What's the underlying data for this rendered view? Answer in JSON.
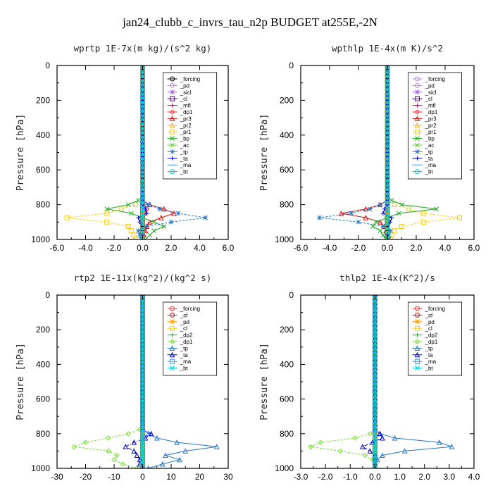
{
  "figure_title": "jan24_clubb_c_invrs_tau_n2p  BUDGET at255E,-2N",
  "chart_data": [
    {
      "type": "line",
      "title": "wprtp  1E-7x(m kg)/(s^2 kg)",
      "ylabel": "Pressure [hPa]",
      "xlim": [
        -6,
        6
      ],
      "ylim": [
        1000,
        0
      ],
      "xticks": [
        "-6.0",
        "-4.0",
        "-2.0",
        "0.0",
        "2.0",
        "4.0",
        "6.0"
      ],
      "xtick_values": [
        -6,
        -4,
        -2,
        0,
        2,
        4,
        6
      ],
      "yticks": [
        "0",
        "200",
        "400",
        "600",
        "800",
        "1000"
      ],
      "ytick_values": [
        0,
        200,
        400,
        600,
        800,
        1000
      ],
      "pressure": [
        775,
        800,
        825,
        850,
        875,
        900,
        925,
        950,
        975,
        1000
      ],
      "legend": [
        "_forcing",
        "_pd",
        "_sicl",
        "_cl",
        "_mfl",
        "_dp1",
        "_pr3",
        "_pr2",
        "_pr1",
        "_bp",
        "_ac",
        "_tp",
        "_ta",
        "_ma",
        "_bt"
      ],
      "series": [
        {
          "name": "_forcing",
          "color": "#000000",
          "values": [
            0,
            0,
            0,
            0,
            0,
            0,
            0,
            0,
            0,
            0
          ]
        },
        {
          "name": "_pd",
          "color": "#bb88dd",
          "values": [
            0,
            0,
            0,
            0,
            0,
            0,
            0,
            0,
            0,
            0
          ]
        },
        {
          "name": "_sicl",
          "color": "#9966cc",
          "values": [
            0,
            0,
            0,
            0,
            0,
            0,
            0,
            0,
            0,
            0
          ]
        },
        {
          "name": "_cl",
          "color": "#550088",
          "values": [
            0,
            0,
            0,
            0,
            0,
            0,
            0,
            0,
            0,
            0
          ]
        },
        {
          "name": "_mfl",
          "color": "#cc0055",
          "values": [
            0,
            0,
            0,
            0,
            0,
            0,
            0,
            0,
            0,
            0
          ]
        },
        {
          "name": "_dp1",
          "color": "#ff3333",
          "values": [
            0,
            0.1,
            0.3,
            0.2,
            0,
            0,
            0,
            0,
            0,
            0
          ]
        },
        {
          "name": "_pr3",
          "color": "#dd1111",
          "values": [
            0,
            0.5,
            1.5,
            2.2,
            1.3,
            0.5,
            0.3,
            0.2,
            0.1,
            0
          ]
        },
        {
          "name": "_pr2",
          "color": "#ffaa33",
          "values": [
            0,
            0,
            0,
            0,
            0,
            0,
            0,
            0,
            0,
            0
          ]
        },
        {
          "name": "_pr1",
          "color": "#ffcc00",
          "values": [
            0,
            -0.5,
            -1.5,
            -2.5,
            -5.3,
            -2.5,
            -1.0,
            -0.8,
            -0.6,
            -0.5
          ]
        },
        {
          "name": "_bp",
          "color": "#22aa22",
          "values": [
            -0.3,
            -1.0,
            -2.5,
            -0.8,
            0,
            0.8,
            1.5,
            0.8,
            0.5,
            0.2
          ]
        },
        {
          "name": "_ac",
          "color": "#66cc33",
          "values": [
            0,
            0,
            0,
            0,
            0,
            0,
            0,
            0,
            0,
            0
          ]
        },
        {
          "name": "_tp",
          "color": "#2277cc",
          "values": [
            0,
            0.4,
            1.2,
            2.5,
            4.4,
            2.0,
            0.3,
            -0.3,
            -0.2,
            -0.1
          ]
        },
        {
          "name": "_ta",
          "color": "#0000cc",
          "values": [
            0,
            0,
            0.2,
            0.3,
            -0.3,
            -0.2,
            0,
            0,
            0,
            0
          ]
        },
        {
          "name": "_ma",
          "color": "#3399ff",
          "values": [
            0,
            0,
            0,
            0,
            0,
            0,
            0,
            0,
            0,
            0
          ]
        },
        {
          "name": "_bt",
          "color": "#00cccc",
          "values": [
            0,
            0,
            0,
            0,
            0,
            0,
            0,
            0,
            0,
            0
          ]
        }
      ]
    },
    {
      "type": "line",
      "title": "wpthlp  1E-4x(m K)/s^2",
      "ylabel": "Pressure [hPa]",
      "xlim": [
        -6,
        6
      ],
      "ylim": [
        1000,
        0
      ],
      "xticks": [
        "-6.0",
        "-4.0",
        "-2.0",
        "0.0",
        "2.0",
        "4.0",
        "6.0"
      ],
      "xtick_values": [
        -6,
        -4,
        -2,
        0,
        2,
        4,
        6
      ],
      "yticks": [
        "0",
        "200",
        "400",
        "600",
        "800",
        "1000"
      ],
      "ytick_values": [
        0,
        200,
        400,
        600,
        800,
        1000
      ],
      "pressure": [
        775,
        800,
        825,
        850,
        875,
        900,
        925,
        950,
        975,
        1000
      ],
      "legend": [
        "_forcing",
        "_pd",
        "_sicl",
        "_cl",
        "_mfl",
        "_dp1",
        "_pr3",
        "_pr2",
        "_pr1",
        "_bp",
        "_ac",
        "_tp",
        "_ta",
        "_ma",
        "_bt"
      ],
      "series": [
        {
          "name": "_forcing",
          "color": "#bb88dd",
          "values": [
            0,
            0,
            0,
            0,
            0,
            0,
            0,
            0,
            0,
            0
          ]
        },
        {
          "name": "_pd",
          "color": "#bb88dd",
          "values": [
            0,
            0,
            0,
            0,
            0,
            0,
            0,
            0,
            0,
            0
          ]
        },
        {
          "name": "_sicl",
          "color": "#9966cc",
          "values": [
            0,
            0,
            0,
            0,
            0,
            0,
            0,
            0,
            0,
            0
          ]
        },
        {
          "name": "_cl",
          "color": "#550088",
          "values": [
            0,
            0,
            0,
            0,
            0,
            0,
            0,
            0,
            0,
            0
          ]
        },
        {
          "name": "_mfl",
          "color": "#cc0055",
          "values": [
            0,
            0,
            0,
            0,
            0,
            0,
            0,
            0,
            0,
            0
          ]
        },
        {
          "name": "_dp1",
          "color": "#ff3333",
          "values": [
            0,
            0,
            0,
            0,
            0,
            0,
            0,
            0,
            0,
            0
          ]
        },
        {
          "name": "_pr3",
          "color": "#dd1111",
          "values": [
            0,
            -0.5,
            -1.5,
            -3.2,
            -1.5,
            -0.5,
            -0.2,
            -0.1,
            0,
            0
          ]
        },
        {
          "name": "_pr2",
          "color": "#ffaa33",
          "values": [
            0,
            0,
            0,
            0,
            0,
            0,
            0,
            0,
            0,
            0
          ]
        },
        {
          "name": "_pr1",
          "color": "#ffcc00",
          "values": [
            0,
            0.5,
            1.5,
            2.5,
            5.0,
            2.5,
            1.0,
            0.5,
            0.3,
            0.2
          ]
        },
        {
          "name": "_bp",
          "color": "#22aa22",
          "values": [
            0.3,
            1.0,
            3.4,
            0.8,
            0,
            -0.8,
            -1.0,
            -0.5,
            -0.3,
            -0.1
          ]
        },
        {
          "name": "_ac",
          "color": "#66cc33",
          "values": [
            0,
            0,
            0,
            0,
            0,
            0,
            0,
            0,
            0,
            0
          ]
        },
        {
          "name": "_tp",
          "color": "#2277cc",
          "values": [
            0,
            -0.5,
            -1.2,
            -2.5,
            -4.7,
            -2.0,
            -0.3,
            0.2,
            0.1,
            0.1
          ]
        },
        {
          "name": "_ta",
          "color": "#0000cc",
          "values": [
            0,
            0,
            -0.2,
            -0.3,
            0.3,
            0.2,
            0,
            0,
            0,
            0
          ]
        },
        {
          "name": "_ma",
          "color": "#3399ff",
          "values": [
            0,
            0,
            0,
            0,
            0,
            0,
            0,
            0,
            0,
            0
          ]
        },
        {
          "name": "_bt",
          "color": "#00cccc",
          "values": [
            0,
            0,
            0,
            0,
            0,
            0,
            0,
            0,
            0,
            0
          ]
        }
      ]
    },
    {
      "type": "line",
      "title": "rtp2  1E-11x(kg^2)/(kg^2 s)",
      "ylabel": "Pressure [hPa]",
      "xlim": [
        -30,
        30
      ],
      "ylim": [
        1000,
        0
      ],
      "xticks": [
        "-30",
        "-20",
        "-10",
        "0",
        "10",
        "20",
        "30"
      ],
      "xtick_values": [
        -30,
        -20,
        -10,
        0,
        10,
        20,
        30
      ],
      "yticks": [
        "0",
        "200",
        "400",
        "600",
        "800",
        "1000"
      ],
      "ytick_values": [
        0,
        200,
        400,
        600,
        800,
        1000
      ],
      "pressure": [
        775,
        800,
        825,
        850,
        875,
        900,
        925,
        950,
        975,
        1000
      ],
      "legend": [
        "_forcing",
        "_sf",
        "_pd",
        "_cl",
        "_dp2",
        "_dp1",
        "_tp",
        "_ta",
        "_ma",
        "_bt"
      ],
      "series": [
        {
          "name": "_forcing",
          "color": "#ff3333",
          "values": [
            0,
            0,
            0,
            0,
            0,
            0,
            0,
            0,
            0,
            0
          ]
        },
        {
          "name": "_sf",
          "color": "#dd1111",
          "values": [
            0,
            0,
            0,
            0,
            0,
            0,
            0,
            0,
            0,
            0
          ]
        },
        {
          "name": "_pd",
          "color": "#ff9900",
          "values": [
            0,
            0,
            0,
            0,
            0,
            0,
            0,
            0,
            0,
            0
          ]
        },
        {
          "name": "_cl",
          "color": "#ffcc00",
          "values": [
            0,
            0,
            0,
            0,
            0,
            0,
            0,
            0,
            0,
            0
          ]
        },
        {
          "name": "_dp2",
          "color": "#22aa22",
          "values": [
            0,
            0,
            0,
            0,
            0,
            0,
            0,
            0,
            0,
            0
          ]
        },
        {
          "name": "_dp1",
          "color": "#77dd33",
          "values": [
            -1,
            -5,
            -12,
            -20,
            -24,
            -12,
            -9,
            -10,
            -7,
            -2
          ]
        },
        {
          "name": "_tp",
          "color": "#2277cc",
          "values": [
            0,
            2,
            5,
            12,
            26,
            15,
            8,
            13,
            7,
            2
          ]
        },
        {
          "name": "_ta",
          "color": "#0000cc",
          "values": [
            0,
            3,
            1,
            -3,
            -6,
            -3,
            -2,
            -1,
            -1,
            0
          ]
        },
        {
          "name": "_ma",
          "color": "#3399ff",
          "values": [
            0,
            0,
            0,
            0,
            0,
            0,
            0,
            0,
            0,
            0
          ]
        },
        {
          "name": "_bt",
          "color": "#00cccc",
          "values": [
            0,
            0,
            0,
            0,
            0,
            0,
            0,
            0,
            0,
            0
          ]
        }
      ]
    },
    {
      "type": "line",
      "title": "thlp2  1E-4x(K^2)/s",
      "ylabel": "Pressure [hPa]",
      "xlim": [
        -3,
        4
      ],
      "ylim": [
        1000,
        0
      ],
      "xticks": [
        "-3.0",
        "-2.0",
        "-1.0",
        "0.0",
        "1.0",
        "2.0",
        "3.0",
        "4.0"
      ],
      "xtick_values": [
        -3,
        -2,
        -1,
        0,
        1,
        2,
        3,
        4
      ],
      "yticks": [
        "0",
        "200",
        "400",
        "600",
        "800",
        "1000"
      ],
      "ytick_values": [
        0,
        200,
        400,
        600,
        800,
        1000
      ],
      "pressure": [
        775,
        800,
        825,
        850,
        875,
        900,
        925,
        950,
        975,
        1000
      ],
      "legend": [
        "_forcing",
        "_sf",
        "_pd",
        "_cl",
        "_dp2",
        "_dp1",
        "_tp",
        "_ta",
        "_ma",
        "_bt"
      ],
      "series": [
        {
          "name": "_forcing",
          "color": "#ff3333",
          "values": [
            0,
            0,
            0,
            0,
            0,
            0,
            0,
            0,
            0,
            0
          ]
        },
        {
          "name": "_sf",
          "color": "#dd1111",
          "values": [
            0,
            0,
            0,
            0,
            0,
            0,
            0,
            0,
            0,
            0
          ]
        },
        {
          "name": "_pd",
          "color": "#ff9900",
          "values": [
            0,
            0,
            0,
            0,
            0,
            0,
            0,
            0,
            0,
            0
          ]
        },
        {
          "name": "_cl",
          "color": "#ffcc00",
          "values": [
            0,
            0,
            0,
            0,
            0,
            0,
            0,
            0,
            0,
            0
          ]
        },
        {
          "name": "_dp2",
          "color": "#22aa22",
          "values": [
            0,
            0,
            0,
            0,
            0,
            0,
            0,
            0,
            0,
            0
          ]
        },
        {
          "name": "_dp1",
          "color": "#77dd33",
          "values": [
            0,
            -0.2,
            -0.8,
            -2.2,
            -2.6,
            -1.4,
            -0.4,
            -0.1,
            0,
            0
          ]
        },
        {
          "name": "_tp",
          "color": "#2277cc",
          "values": [
            0,
            0.2,
            0.8,
            2.6,
            3.1,
            1.2,
            0.3,
            0.1,
            0,
            0
          ]
        },
        {
          "name": "_ta",
          "color": "#0000cc",
          "values": [
            0,
            0.2,
            0.3,
            -0.1,
            -0.5,
            -0.2,
            0,
            0,
            0,
            0
          ]
        },
        {
          "name": "_ma",
          "color": "#3399ff",
          "values": [
            0,
            0,
            0,
            0,
            0,
            0,
            0,
            0,
            0,
            0
          ]
        },
        {
          "name": "_bt",
          "color": "#00cccc",
          "values": [
            0,
            0,
            0,
            0,
            0,
            0,
            0,
            0,
            0,
            0
          ]
        }
      ]
    }
  ]
}
